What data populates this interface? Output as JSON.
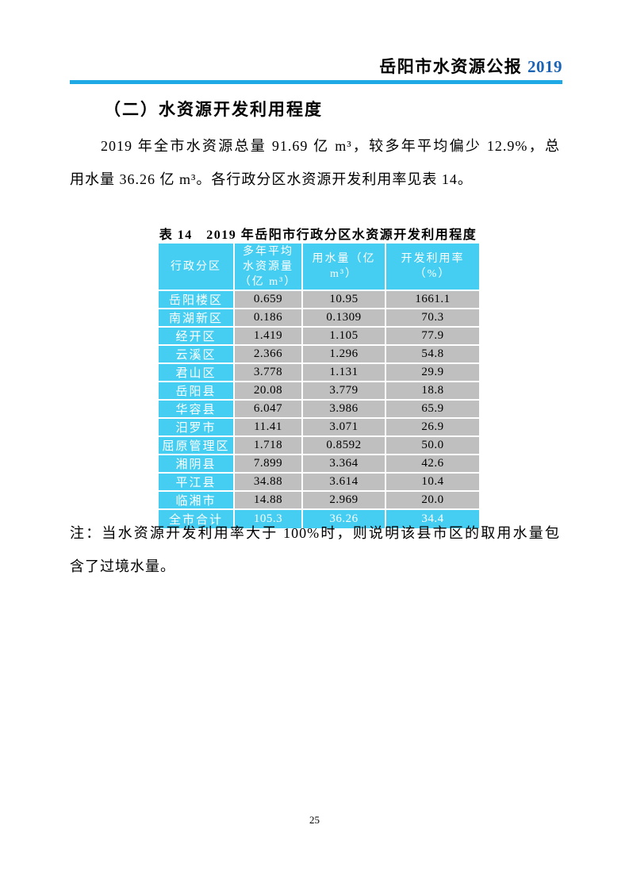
{
  "header": {
    "title": "岳阳市水资源公报",
    "year": "2019"
  },
  "colors": {
    "rule_blue": "#1FA9E4",
    "year_blue": "#1A63B5",
    "table_header_bg": "#45CEF2",
    "table_cell_bg": "#BFBFBF",
    "table_border": "#FFFFFF"
  },
  "section": {
    "heading": "（二）水资源开发利用程度"
  },
  "para": {
    "lines": [
      "2019 年全市水资源总量 91.69 亿 m³，较多年平均偏少 12.9%，总",
      "用水量 36.26 亿 m³。各行政分区水资源开发利用率见表 14。"
    ]
  },
  "table": {
    "title": "表 14　2019 年岳阳市行政分区水资源开发利用程度",
    "columns": [
      "行政分区",
      "多年平均\n水资源量\n（亿 m³）",
      "用水量（亿 m³）",
      "开发利用率（%）"
    ],
    "rows": [
      {
        "region": "岳阳楼区",
        "values": [
          "0.659",
          "10.95",
          "1661.1"
        ]
      },
      {
        "region": "南湖新区",
        "values": [
          "0.186",
          "0.1309",
          "70.3"
        ]
      },
      {
        "region": "经开区",
        "values": [
          "1.419",
          "1.105",
          "77.9"
        ]
      },
      {
        "region": "云溪区",
        "values": [
          "2.366",
          "1.296",
          "54.8"
        ]
      },
      {
        "region": "君山区",
        "values": [
          "3.778",
          "1.131",
          "29.9"
        ]
      },
      {
        "region": "岳阳县",
        "values": [
          "20.08",
          "3.779",
          "18.8"
        ]
      },
      {
        "region": "华容县",
        "values": [
          "6.047",
          "3.986",
          "65.9"
        ]
      },
      {
        "region": "汨罗市",
        "values": [
          "11.41",
          "3.071",
          "26.9"
        ]
      },
      {
        "region": "屈原管理区",
        "values": [
          "1.718",
          "0.8592",
          "50.0"
        ]
      },
      {
        "region": "湘阴县",
        "values": [
          "7.899",
          "3.364",
          "42.6"
        ]
      },
      {
        "region": "平江县",
        "values": [
          "34.88",
          "3.614",
          "10.4"
        ]
      },
      {
        "region": "临湘市",
        "values": [
          "14.88",
          "2.969",
          "20.0"
        ]
      }
    ],
    "total_row": {
      "region": "全市合计",
      "values": [
        "105.3",
        "36.26",
        "34.4"
      ]
    }
  },
  "note": {
    "lines": [
      "注：当水资源开发利用率大于 100%时，则说明该县市区的取用水量包",
      "含了过境水量。"
    ]
  },
  "footer": {
    "page_number": "25"
  }
}
